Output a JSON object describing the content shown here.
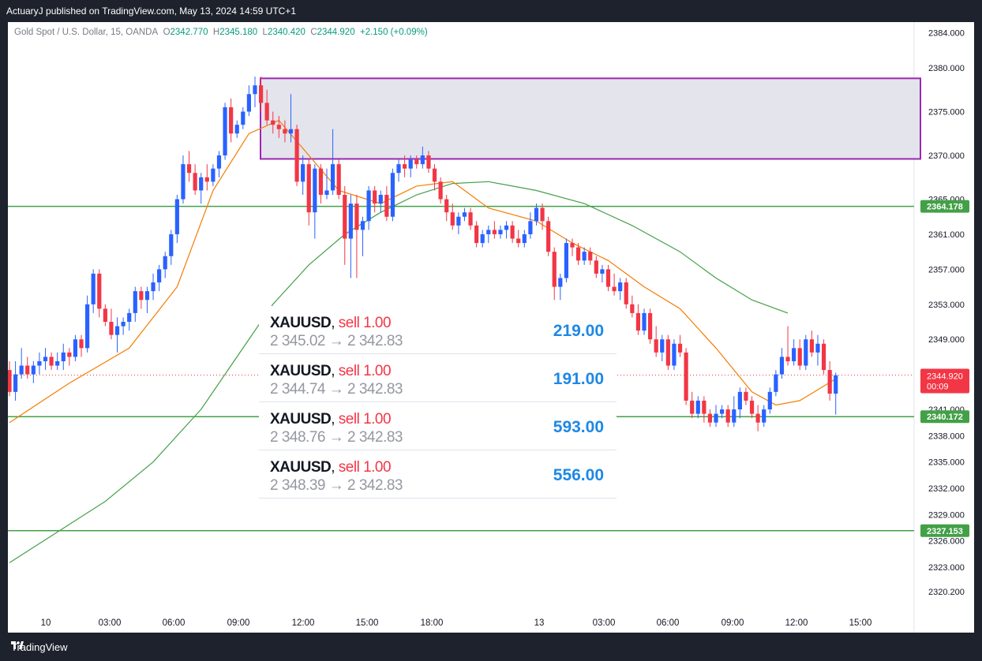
{
  "header": {
    "text": "ActuaryJ published on TradingView.com, May 13, 2024 14:59 UTC+1"
  },
  "legend": {
    "symbol": "Gold Spot / U.S. Dollar, 15, OANDA",
    "o_label": "O",
    "o": "2342.770",
    "h_label": "H",
    "h": "2345.180",
    "l_label": "L",
    "l": "2340.420",
    "c_label": "C",
    "c": "2344.920",
    "change": "+2.150 (+0.09%)"
  },
  "footer": {
    "brand": "TradingView"
  },
  "colors": {
    "up": "#2962ff",
    "down": "#f23645",
    "ema_fast": "#f57c00",
    "ema_slow": "#43a047",
    "level": "#43a047",
    "zone_border": "#9c27b0",
    "zone_fill": "#e0e1ea"
  },
  "trades": [
    {
      "symbol": "XAUUSD",
      "side": "sell 1.00",
      "prices": "2 345.02 → 2 342.83",
      "pl": "219.00"
    },
    {
      "symbol": "XAUUSD",
      "side": "sell 1.00",
      "prices": "2 344.74 → 2 342.83",
      "pl": "191.00"
    },
    {
      "symbol": "XAUUSD",
      "side": "sell 1.00",
      "prices": "2 348.76 → 2 342.83",
      "pl": "593.00"
    },
    {
      "symbol": "XAUUSD",
      "side": "sell 1.00",
      "prices": "2 348.39 → 2 342.83",
      "pl": "556.00"
    }
  ],
  "chart_data": {
    "type": "candlestick",
    "y_ticks": [
      "2384.000",
      "2380.000",
      "2375.000",
      "2370.000",
      "2365.000",
      "2361.000",
      "2357.000",
      "2353.000",
      "2349.000",
      "2341.000",
      "2338.000",
      "2335.000",
      "2332.000",
      "2329.000",
      "2326.000",
      "2323.000",
      "2320.200"
    ],
    "x_ticks": [
      "10",
      "03:00",
      "06:00",
      "09:00",
      "12:00",
      "15:00",
      "18:00",
      "13",
      "03:00",
      "06:00",
      "09:00",
      "12:00",
      "15:00"
    ],
    "price_labels": [
      {
        "value": "2364.178",
        "kind": "level"
      },
      {
        "value": "2340.172",
        "kind": "level"
      },
      {
        "value": "2327.153",
        "kind": "level"
      },
      {
        "value": "2344.920",
        "kind": "last",
        "sub": "00:09"
      }
    ],
    "levels": [
      2364.178,
      2340.172,
      2327.153
    ],
    "zone": {
      "top": 2378.8,
      "bottom": 2369.6
    },
    "last_price": 2344.92,
    "candles": [
      [
        2345.5,
        2346.5,
        2342.5,
        2343.0
      ],
      [
        2343.0,
        2346.5,
        2342.0,
        2345.0
      ],
      [
        2345.0,
        2348.0,
        2344.5,
        2346.0
      ],
      [
        2346.0,
        2347.0,
        2344.5,
        2345.0
      ],
      [
        2345.0,
        2346.5,
        2344.0,
        2346.0
      ],
      [
        2346.0,
        2347.5,
        2345.0,
        2346.5
      ],
      [
        2346.5,
        2348.0,
        2345.5,
        2347.0
      ],
      [
        2347.0,
        2347.5,
        2345.5,
        2346.0
      ],
      [
        2346.0,
        2347.5,
        2345.5,
        2346.5
      ],
      [
        2346.5,
        2348.5,
        2345.5,
        2347.5
      ],
      [
        2347.5,
        2348.0,
        2346.0,
        2347.0
      ],
      [
        2347.0,
        2349.5,
        2346.5,
        2349.0
      ],
      [
        2349.0,
        2349.5,
        2347.0,
        2348.0
      ],
      [
        2348.0,
        2354.0,
        2347.5,
        2353.0
      ],
      [
        2353.0,
        2357.0,
        2352.0,
        2356.5
      ],
      [
        2356.5,
        2357.0,
        2351.5,
        2352.5
      ],
      [
        2352.5,
        2353.0,
        2350.5,
        2351.0
      ],
      [
        2351.0,
        2352.5,
        2349.0,
        2349.5
      ],
      [
        2349.5,
        2351.5,
        2347.5,
        2350.5
      ],
      [
        2350.5,
        2351.5,
        2349.5,
        2351.0
      ],
      [
        2351.0,
        2352.5,
        2350.0,
        2352.0
      ],
      [
        2352.0,
        2355.0,
        2351.0,
        2354.5
      ],
      [
        2354.5,
        2355.0,
        2352.5,
        2353.5
      ],
      [
        2353.5,
        2355.0,
        2352.0,
        2354.5
      ],
      [
        2354.5,
        2356.5,
        2353.5,
        2355.5
      ],
      [
        2355.5,
        2357.5,
        2354.5,
        2357.0
      ],
      [
        2357.0,
        2359.0,
        2356.0,
        2358.5
      ],
      [
        2358.5,
        2361.5,
        2357.5,
        2361.0
      ],
      [
        2361.0,
        2365.5,
        2360.0,
        2365.0
      ],
      [
        2365.0,
        2370.0,
        2364.5,
        2369.0
      ],
      [
        2369.0,
        2370.5,
        2367.0,
        2368.0
      ],
      [
        2368.0,
        2369.0,
        2365.5,
        2366.0
      ],
      [
        2366.0,
        2368.0,
        2364.5,
        2367.5
      ],
      [
        2367.5,
        2369.0,
        2366.0,
        2367.0
      ],
      [
        2367.0,
        2369.0,
        2366.5,
        2368.5
      ],
      [
        2368.5,
        2370.5,
        2367.5,
        2370.0
      ],
      [
        2370.0,
        2376.0,
        2369.5,
        2375.5
      ],
      [
        2375.5,
        2376.5,
        2371.5,
        2372.5
      ],
      [
        2372.5,
        2374.0,
        2372.0,
        2373.5
      ],
      [
        2373.5,
        2375.5,
        2373.0,
        2375.0
      ],
      [
        2375.0,
        2378.0,
        2374.5,
        2377.0
      ],
      [
        2377.0,
        2379.0,
        2375.5,
        2378.0
      ],
      [
        2378.0,
        2379.0,
        2375.0,
        2376.0
      ],
      [
        2376.0,
        2377.5,
        2373.5,
        2374.0
      ],
      [
        2374.0,
        2375.0,
        2372.5,
        2373.5
      ],
      [
        2373.5,
        2374.5,
        2372.0,
        2373.0
      ],
      [
        2373.0,
        2374.0,
        2371.5,
        2372.5
      ],
      [
        2372.5,
        2377.0,
        2371.5,
        2373.0
      ],
      [
        2373.0,
        2373.5,
        2366.5,
        2367.0
      ],
      [
        2367.0,
        2370.0,
        2365.5,
        2369.0
      ],
      [
        2369.0,
        2369.5,
        2362.0,
        2363.5
      ],
      [
        2363.5,
        2369.0,
        2360.5,
        2368.5
      ],
      [
        2368.5,
        2369.0,
        2364.5,
        2365.5
      ],
      [
        2365.5,
        2368.5,
        2365.0,
        2366.0
      ],
      [
        2366.0,
        2373.0,
        2365.5,
        2369.0
      ],
      [
        2369.0,
        2369.5,
        2365.0,
        2365.5
      ],
      [
        2365.5,
        2366.5,
        2357.5,
        2360.5
      ],
      [
        2360.5,
        2365.5,
        2356.0,
        2364.5
      ],
      [
        2364.5,
        2365.5,
        2356.0,
        2361.5
      ],
      [
        2361.5,
        2363.0,
        2358.5,
        2362.5
      ],
      [
        2362.5,
        2366.5,
        2361.5,
        2366.0
      ],
      [
        2366.0,
        2366.5,
        2363.5,
        2364.5
      ],
      [
        2364.5,
        2366.0,
        2363.5,
        2365.5
      ],
      [
        2365.5,
        2366.5,
        2362.5,
        2363.0
      ],
      [
        2363.0,
        2368.5,
        2362.5,
        2368.0
      ],
      [
        2368.0,
        2369.5,
        2367.0,
        2369.0
      ],
      [
        2369.0,
        2370.0,
        2367.5,
        2368.5
      ],
      [
        2368.5,
        2370.0,
        2367.5,
        2369.5
      ],
      [
        2369.5,
        2370.0,
        2368.5,
        2369.0
      ],
      [
        2369.0,
        2371.0,
        2368.5,
        2370.0
      ],
      [
        2370.0,
        2370.5,
        2368.0,
        2368.5
      ],
      [
        2368.5,
        2369.0,
        2366.0,
        2367.0
      ],
      [
        2367.0,
        2367.5,
        2364.5,
        2365.0
      ],
      [
        2365.0,
        2365.5,
        2362.5,
        2363.5
      ],
      [
        2363.5,
        2364.5,
        2361.5,
        2362.0
      ],
      [
        2362.0,
        2363.5,
        2361.0,
        2363.0
      ],
      [
        2363.0,
        2364.0,
        2362.5,
        2363.5
      ],
      [
        2363.5,
        2364.0,
        2361.5,
        2362.0
      ],
      [
        2362.0,
        2362.5,
        2359.5,
        2360.0
      ],
      [
        2360.0,
        2361.5,
        2359.5,
        2361.0
      ],
      [
        2361.0,
        2362.0,
        2360.0,
        2361.5
      ],
      [
        2361.5,
        2362.5,
        2360.5,
        2361.0
      ],
      [
        2361.0,
        2362.0,
        2360.5,
        2361.5
      ],
      [
        2361.5,
        2362.5,
        2360.5,
        2362.0
      ],
      [
        2362.0,
        2362.5,
        2360.0,
        2360.5
      ],
      [
        2360.5,
        2361.5,
        2359.5,
        2360.0
      ],
      [
        2360.0,
        2361.5,
        2359.5,
        2361.0
      ],
      [
        2361.0,
        2363.5,
        2360.5,
        2362.5
      ],
      [
        2362.5,
        2364.5,
        2362.0,
        2364.0
      ],
      [
        2364.0,
        2364.5,
        2361.5,
        2362.5
      ],
      [
        2362.5,
        2363.0,
        2358.5,
        2359.0
      ],
      [
        2359.0,
        2359.5,
        2353.5,
        2355.0
      ],
      [
        2355.0,
        2356.5,
        2353.5,
        2356.0
      ],
      [
        2356.0,
        2360.5,
        2355.5,
        2360.0
      ],
      [
        2360.0,
        2360.5,
        2358.5,
        2359.5
      ],
      [
        2359.5,
        2360.0,
        2357.5,
        2358.0
      ],
      [
        2358.0,
        2359.5,
        2357.5,
        2359.0
      ],
      [
        2359.0,
        2359.5,
        2357.5,
        2358.0
      ],
      [
        2358.0,
        2358.5,
        2356.0,
        2356.5
      ],
      [
        2356.5,
        2357.5,
        2355.5,
        2357.0
      ],
      [
        2357.0,
        2357.5,
        2354.5,
        2355.0
      ],
      [
        2355.0,
        2356.5,
        2354.0,
        2354.5
      ],
      [
        2354.5,
        2356.0,
        2353.5,
        2355.5
      ],
      [
        2355.5,
        2356.0,
        2352.5,
        2353.0
      ],
      [
        2353.0,
        2354.0,
        2351.5,
        2352.0
      ],
      [
        2352.0,
        2353.0,
        2349.5,
        2350.0
      ],
      [
        2350.0,
        2352.5,
        2349.5,
        2352.0
      ],
      [
        2352.0,
        2352.5,
        2348.5,
        2349.0
      ],
      [
        2349.0,
        2350.5,
        2347.0,
        2347.5
      ],
      [
        2347.5,
        2349.5,
        2346.5,
        2349.0
      ],
      [
        2349.0,
        2349.5,
        2345.5,
        2346.0
      ],
      [
        2346.0,
        2349.0,
        2345.5,
        2348.5
      ],
      [
        2348.5,
        2349.5,
        2347.0,
        2347.5
      ],
      [
        2347.5,
        2348.0,
        2341.5,
        2342.0
      ],
      [
        2342.0,
        2343.0,
        2340.0,
        2340.5
      ],
      [
        2340.5,
        2342.5,
        2340.0,
        2342.0
      ],
      [
        2342.0,
        2342.5,
        2339.5,
        2340.5
      ],
      [
        2340.5,
        2341.0,
        2339.0,
        2339.5
      ],
      [
        2339.5,
        2341.5,
        2339.0,
        2340.5
      ],
      [
        2340.5,
        2341.5,
        2340.0,
        2341.0
      ],
      [
        2341.0,
        2341.5,
        2339.0,
        2339.5
      ],
      [
        2339.5,
        2342.5,
        2339.0,
        2341.0
      ],
      [
        2341.0,
        2343.5,
        2340.0,
        2343.0
      ],
      [
        2343.0,
        2343.5,
        2341.5,
        2342.0
      ],
      [
        2342.0,
        2342.5,
        2340.0,
        2340.5
      ],
      [
        2340.5,
        2341.5,
        2338.5,
        2339.5
      ],
      [
        2339.5,
        2341.5,
        2339.0,
        2341.0
      ],
      [
        2341.0,
        2343.5,
        2340.5,
        2343.0
      ],
      [
        2343.0,
        2345.5,
        2342.5,
        2345.0
      ],
      [
        2345.0,
        2348.0,
        2344.5,
        2347.0
      ],
      [
        2347.0,
        2350.5,
        2346.0,
        2346.5
      ],
      [
        2346.5,
        2349.0,
        2346.0,
        2348.0
      ],
      [
        2348.0,
        2349.0,
        2345.5,
        2346.0
      ],
      [
        2346.0,
        2349.5,
        2345.5,
        2349.0
      ],
      [
        2349.0,
        2350.0,
        2347.0,
        2347.5
      ],
      [
        2347.5,
        2349.5,
        2346.0,
        2348.5
      ],
      [
        2348.5,
        2349.0,
        2345.0,
        2345.5
      ],
      [
        2345.5,
        2346.5,
        2342.0,
        2342.8
      ],
      [
        2342.8,
        2345.2,
        2340.4,
        2344.9
      ]
    ],
    "ema_fast": [
      [
        0,
        2339.5
      ],
      [
        10,
        2344.0
      ],
      [
        20,
        2348.0
      ],
      [
        28,
        2355.0
      ],
      [
        34,
        2366.0
      ],
      [
        40,
        2372.5
      ],
      [
        45,
        2374.0
      ],
      [
        50,
        2370.0
      ],
      [
        55,
        2366.0
      ],
      [
        62,
        2364.5
      ],
      [
        68,
        2366.5
      ],
      [
        74,
        2367.0
      ],
      [
        80,
        2364.0
      ],
      [
        88,
        2362.5
      ],
      [
        94,
        2360.0
      ],
      [
        100,
        2358.0
      ],
      [
        106,
        2355.0
      ],
      [
        112,
        2352.5
      ],
      [
        118,
        2348.0
      ],
      [
        124,
        2343.0
      ],
      [
        128,
        2341.5
      ],
      [
        132,
        2342.0
      ],
      [
        138,
        2344.5
      ]
    ],
    "ema_slow": [
      [
        0,
        2323.5
      ],
      [
        8,
        2327.0
      ],
      [
        16,
        2330.5
      ],
      [
        24,
        2335.0
      ],
      [
        32,
        2341.0
      ],
      [
        38,
        2347.0
      ],
      [
        44,
        2353.0
      ],
      [
        50,
        2357.5
      ],
      [
        56,
        2361.0
      ],
      [
        62,
        2363.5
      ],
      [
        68,
        2365.5
      ],
      [
        74,
        2366.8
      ],
      [
        80,
        2367.0
      ],
      [
        88,
        2366.0
      ],
      [
        96,
        2364.5
      ],
      [
        104,
        2362.0
      ],
      [
        112,
        2359.0
      ],
      [
        118,
        2356.0
      ],
      [
        124,
        2353.5
      ],
      [
        130,
        2352.0
      ]
    ]
  }
}
